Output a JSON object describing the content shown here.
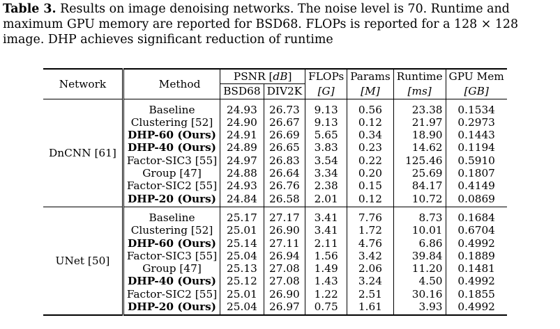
{
  "caption": {
    "label": "Table 3.",
    "line1": " Results on image denoising networks. The noise level is 70. Runtime and",
    "line2": "maximum GPU memory are reported for BSD68. FLOPs is reported for a 128 × 128",
    "line3": "image. DHP achieves significant reduction of runtime"
  },
  "header": {
    "network": "Network",
    "method": "Method",
    "psnr": "PSNR [",
    "psnr_unit": "dB",
    "psnr_close": "]",
    "bsd68": "BSD68",
    "div2k": "DIV2K",
    "flops": "FLOPs",
    "flops_unit": "[G]",
    "params": "Params",
    "params_unit": "[M]",
    "runtime": "Runtime",
    "runtime_unit": "[ms]",
    "gpumem": "GPU Mem",
    "gpumem_unit": "[GB]"
  },
  "groups": [
    {
      "network": "DnCNN [61]",
      "rows": [
        {
          "method": "Baseline",
          "bold": false,
          "bsd68": "24.93",
          "div2k": "26.73",
          "flops": "9.13",
          "params": "0.56",
          "runtime": "23.38",
          "gpumem": "0.1534"
        },
        {
          "method": "Clustering [52]",
          "bold": false,
          "bsd68": "24.90",
          "div2k": "26.67",
          "flops": "9.13",
          "params": "0.12",
          "runtime": "21.97",
          "gpumem": "0.2973"
        },
        {
          "method": "DHP-60 (Ours)",
          "bold": true,
          "bsd68": "24.91",
          "div2k": "26.69",
          "flops": "5.65",
          "params": "0.34",
          "runtime": "18.90",
          "gpumem": "0.1443"
        },
        {
          "method": "DHP-40 (Ours)",
          "bold": true,
          "bsd68": "24.89",
          "div2k": "26.65",
          "flops": "3.83",
          "params": "0.23",
          "runtime": "14.62",
          "gpumem": "0.1194"
        },
        {
          "method": "Factor-SIC3 [55]",
          "bold": false,
          "bsd68": "24.97",
          "div2k": "26.83",
          "flops": "3.54",
          "params": "0.22",
          "runtime": "125.46",
          "gpumem": "0.5910"
        },
        {
          "method": "Group [47]",
          "bold": false,
          "bsd68": "24.88",
          "div2k": "26.64",
          "flops": "3.34",
          "params": "0.20",
          "runtime": "25.69",
          "gpumem": "0.1807"
        },
        {
          "method": "Factor-SIC2 [55]",
          "bold": false,
          "bsd68": "24.93",
          "div2k": "26.76",
          "flops": "2.38",
          "params": "0.15",
          "runtime": "84.17",
          "gpumem": "0.4149"
        },
        {
          "method": "DHP-20 (Ours)",
          "bold": true,
          "bsd68": "24.84",
          "div2k": "26.58",
          "flops": "2.01",
          "params": "0.12",
          "runtime": "10.72",
          "gpumem": "0.0869"
        }
      ]
    },
    {
      "network": "UNet [50]",
      "rows": [
        {
          "method": "Baseline",
          "bold": false,
          "bsd68": "25.17",
          "div2k": "27.17",
          "flops": "3.41",
          "params": "7.76",
          "runtime": "8.73",
          "gpumem": "0.1684"
        },
        {
          "method": "Clustering [52]",
          "bold": false,
          "bsd68": "25.01",
          "div2k": "26.90",
          "flops": "3.41",
          "params": "1.72",
          "runtime": "10.01",
          "gpumem": "0.6704"
        },
        {
          "method": "DHP-60 (Ours)",
          "bold": true,
          "bsd68": "25.14",
          "div2k": "27.11",
          "flops": "2.11",
          "params": "4.76",
          "runtime": "6.86",
          "gpumem": "0.4992"
        },
        {
          "method": "Factor-SIC3 [55]",
          "bold": false,
          "bsd68": "25.04",
          "div2k": "26.94",
          "flops": "1.56",
          "params": "3.42",
          "runtime": "39.84",
          "gpumem": "0.1889"
        },
        {
          "method": "Group [47]",
          "bold": false,
          "bsd68": "25.13",
          "div2k": "27.08",
          "flops": "1.49",
          "params": "2.06",
          "runtime": "11.20",
          "gpumem": "0.1481"
        },
        {
          "method": "DHP-40 (Ours)",
          "bold": true,
          "bsd68": "25.12",
          "div2k": "27.08",
          "flops": "1.43",
          "params": "3.24",
          "runtime": "4.50",
          "gpumem": "0.4992"
        },
        {
          "method": "Factor-SIC2 [55]",
          "bold": false,
          "bsd68": "25.01",
          "div2k": "26.90",
          "flops": "1.22",
          "params": "2.51",
          "runtime": "30.16",
          "gpumem": "0.1855"
        },
        {
          "method": "DHP-20 (Ours)",
          "bold": true,
          "bsd68": "25.04",
          "div2k": "26.97",
          "flops": "0.75",
          "params": "1.61",
          "runtime": "3.93",
          "gpumem": "0.4992"
        }
      ]
    }
  ]
}
